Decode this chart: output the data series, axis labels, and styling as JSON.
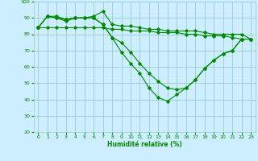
{
  "xlabel": "Humidité relative (%)",
  "background_color": "#cceeff",
  "grid_color": "#99cccc",
  "line_color": "#008800",
  "xlim": [
    -0.5,
    23.5
  ],
  "ylim": [
    20,
    100
  ],
  "yticks": [
    20,
    30,
    40,
    50,
    60,
    70,
    80,
    90,
    100
  ],
  "xticks": [
    0,
    1,
    2,
    3,
    4,
    5,
    6,
    7,
    8,
    9,
    10,
    11,
    12,
    13,
    14,
    15,
    16,
    17,
    18,
    19,
    20,
    21,
    22,
    23
  ],
  "series": [
    [
      84,
      91,
      91,
      89,
      90,
      90,
      91,
      94,
      86,
      85,
      85,
      84,
      83,
      83,
      82,
      82,
      82,
      82,
      81,
      80,
      80,
      80,
      80,
      77
    ],
    [
      84,
      91,
      90,
      89,
      90,
      90,
      90,
      86,
      78,
      75,
      69,
      62,
      56,
      51,
      47,
      46,
      47,
      52,
      59,
      64,
      68,
      70,
      77,
      77
    ],
    [
      84,
      91,
      90,
      88,
      90,
      90,
      90,
      86,
      78,
      69,
      62,
      56,
      47,
      41,
      39,
      43,
      47,
      52,
      59,
      64,
      68,
      70,
      77,
      null
    ],
    [
      84,
      84,
      84,
      84,
      84,
      84,
      84,
      84,
      83,
      83,
      82,
      82,
      82,
      81,
      81,
      81,
      80,
      80,
      79,
      79,
      79,
      78,
      77,
      77
    ]
  ]
}
